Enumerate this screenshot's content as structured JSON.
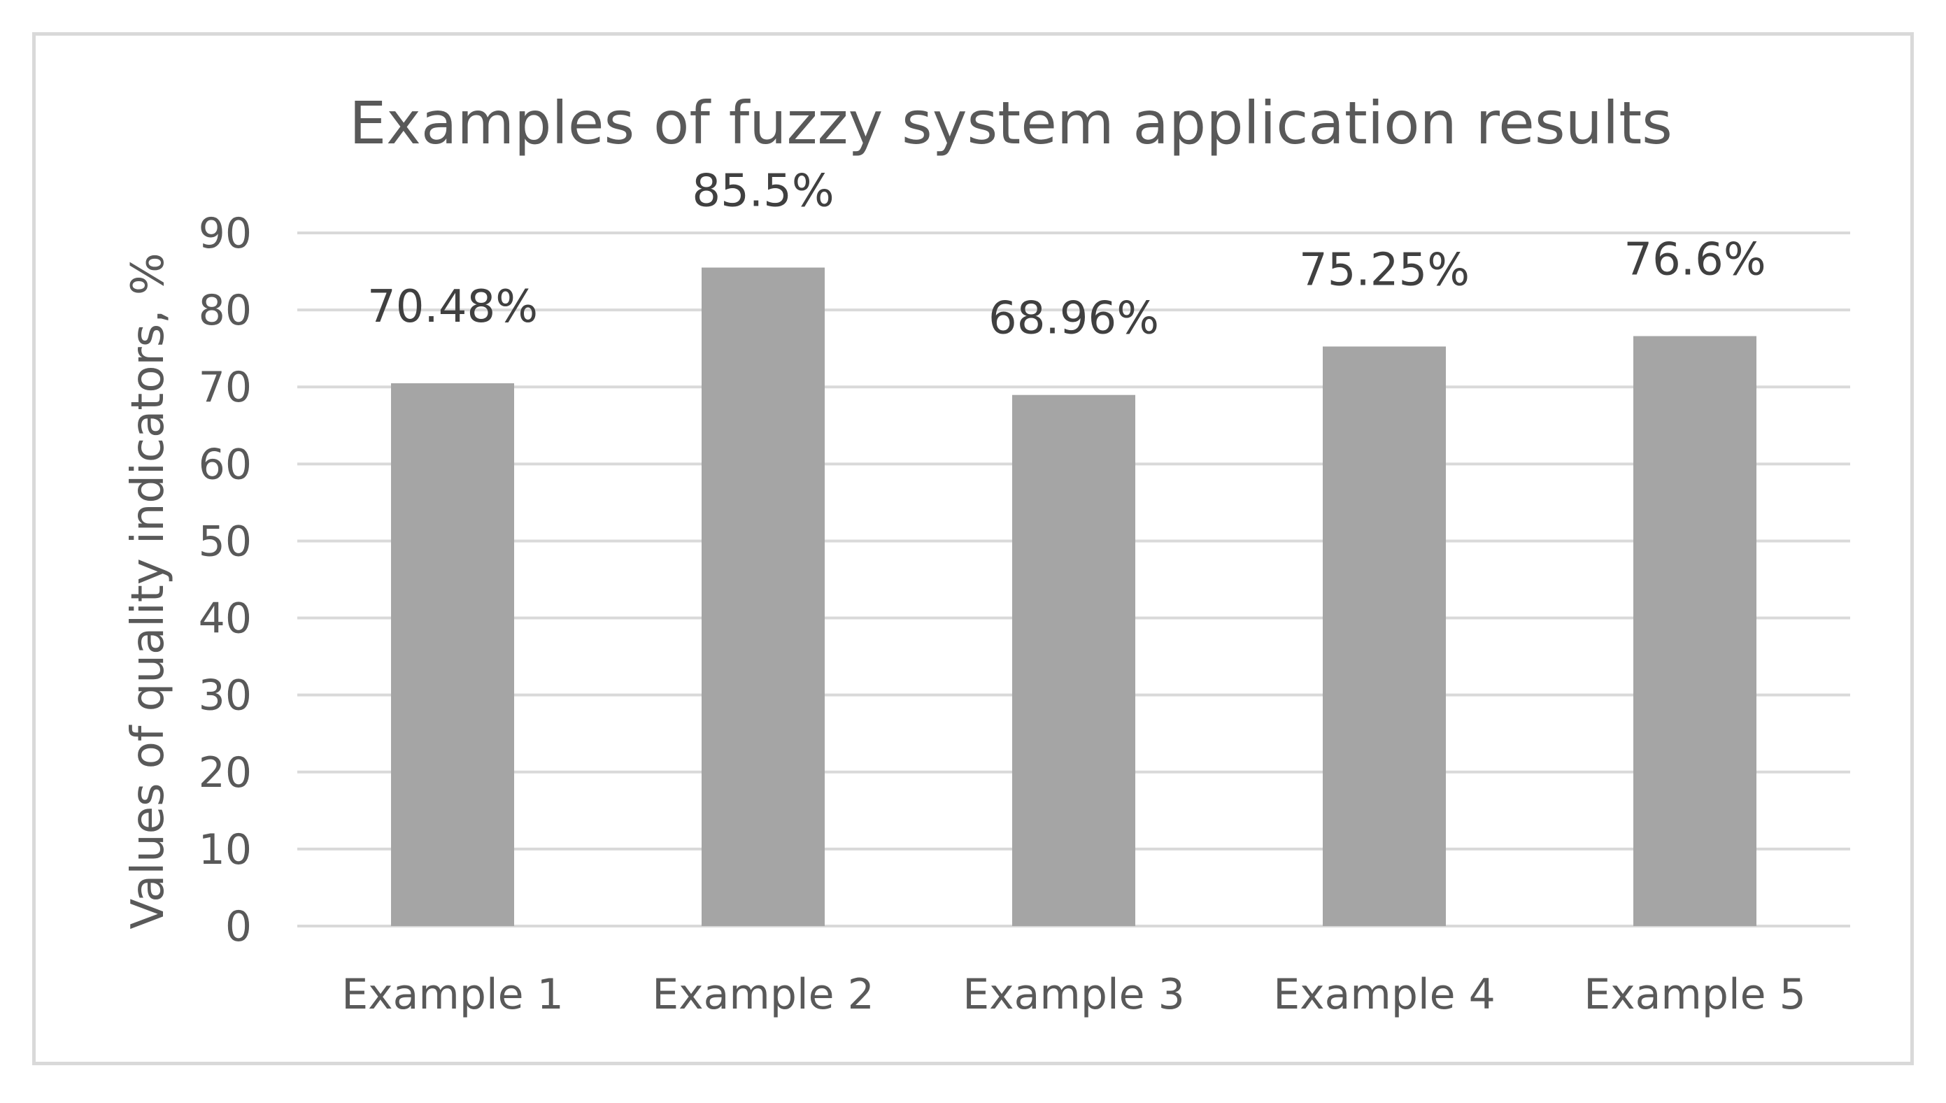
{
  "chart_data": {
    "type": "bar",
    "title": "Examples of fuzzy system application results",
    "xlabel": "",
    "ylabel": "Values of quality indicators, %",
    "categories": [
      "Example 1",
      "Example 2",
      "Example 3",
      "Example 4",
      "Example 5"
    ],
    "values": [
      70.48,
      85.5,
      68.96,
      75.25,
      76.6
    ],
    "data_labels": [
      "70.48%",
      "85.5%",
      "68.96%",
      "75.25%",
      "76.6%"
    ],
    "ylim": [
      0,
      90
    ],
    "yticks": [
      "0",
      "10",
      "20",
      "30",
      "40",
      "50",
      "60",
      "70",
      "80",
      "90"
    ],
    "grid": true,
    "legend": "none",
    "bar_color": "#a5a5a5",
    "gridline_color": "#d9d9d9",
    "text_color": "#595959"
  }
}
